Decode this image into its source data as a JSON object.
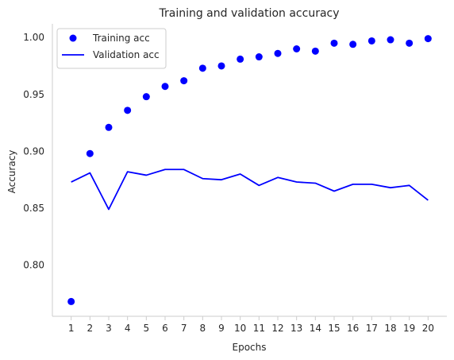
{
  "chart_data": {
    "type": "scatter",
    "title": "Training and validation accuracy",
    "xlabel": "Epochs",
    "ylabel": "Accuracy",
    "x": [
      1,
      2,
      3,
      4,
      5,
      6,
      7,
      8,
      9,
      10,
      11,
      12,
      13,
      14,
      15,
      16,
      17,
      18,
      19,
      20
    ],
    "x_tick_labels": [
      "1",
      "2",
      "3",
      "4",
      "5",
      "6",
      "7",
      "8",
      "9",
      "10",
      "11",
      "12",
      "13",
      "14",
      "15",
      "16",
      "17",
      "18",
      "19",
      "20"
    ],
    "y_tick_labels": [
      "0.80",
      "0.85",
      "0.90",
      "0.95",
      "1.00"
    ],
    "y_ticks": [
      0.8,
      0.85,
      0.9,
      0.95,
      1.0
    ],
    "xlim": [
      0.0,
      21.0
    ],
    "ylim": [
      0.755,
      1.012
    ],
    "grid": false,
    "legend_position": "top-left",
    "series": [
      {
        "name": "Training acc",
        "style": "markers",
        "color": "#0000ff",
        "values": [
          0.768,
          0.898,
          0.921,
          0.936,
          0.948,
          0.957,
          0.962,
          0.973,
          0.975,
          0.981,
          0.983,
          0.986,
          0.99,
          0.988,
          0.995,
          0.994,
          0.997,
          0.998,
          0.995,
          0.999
        ]
      },
      {
        "name": "Validation acc",
        "style": "line",
        "color": "#0000ff",
        "values": [
          0.873,
          0.881,
          0.849,
          0.882,
          0.879,
          0.884,
          0.884,
          0.876,
          0.875,
          0.88,
          0.87,
          0.877,
          0.873,
          0.872,
          0.865,
          0.871,
          0.871,
          0.868,
          0.87,
          0.857
        ]
      }
    ]
  }
}
